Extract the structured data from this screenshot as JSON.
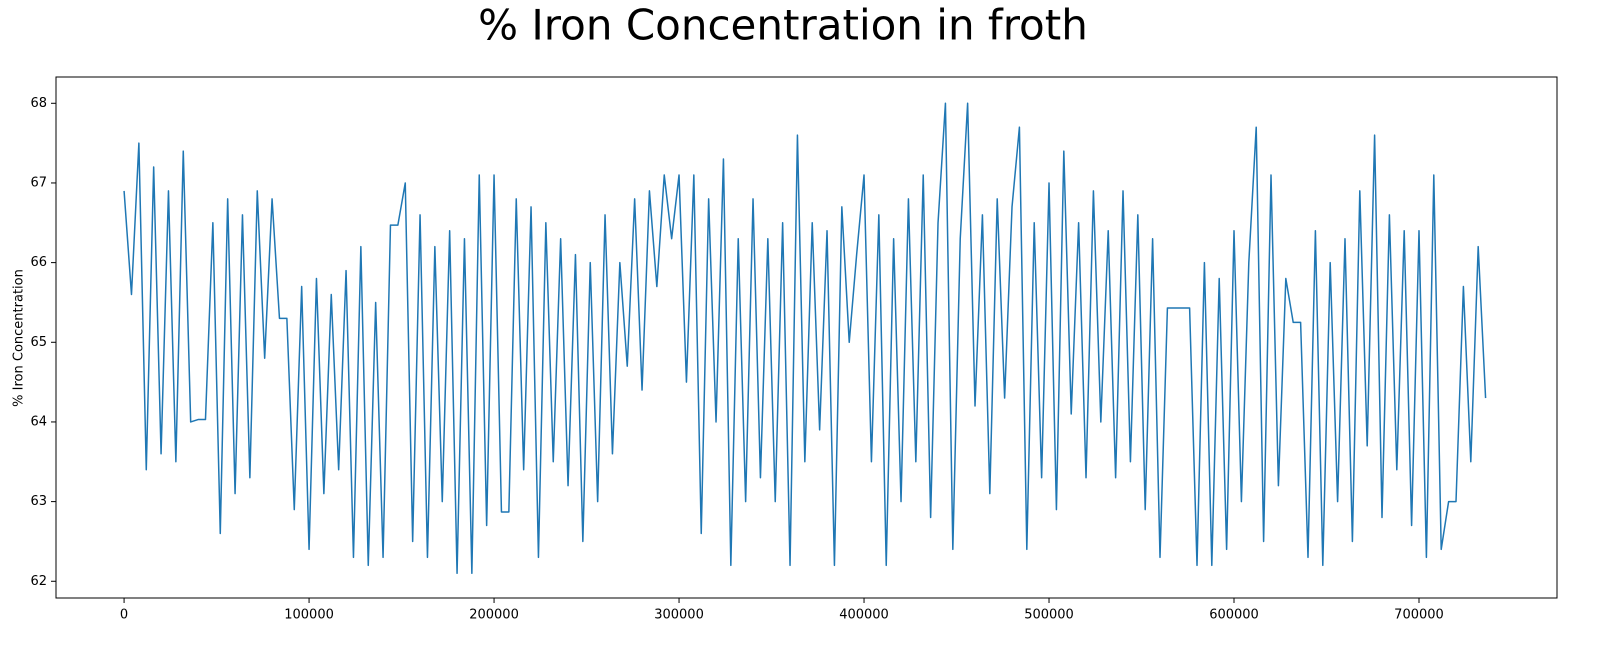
{
  "chart_data": {
    "type": "line",
    "title": "% Iron Concentration in froth",
    "y_label": "% Iron Concentration",
    "xlim": [
      -36800,
      774600
    ],
    "ylim": [
      61.79,
      68.33
    ],
    "xticks": [
      0,
      100000,
      200000,
      300000,
      400000,
      500000,
      600000,
      700000
    ],
    "yticks": [
      62,
      63,
      64,
      65,
      66,
      67,
      68
    ],
    "series": [
      {
        "name": "% Iron Concentration",
        "color": "#1f77b4",
        "x": [
          0,
          4000,
          8000,
          12000,
          16000,
          20000,
          24000,
          28000,
          32000,
          36000,
          40000,
          44000,
          48000,
          52000,
          56000,
          60000,
          64000,
          68000,
          72000,
          76000,
          80000,
          84000,
          88000,
          92000,
          96000,
          100000,
          104000,
          108000,
          112000,
          116000,
          120000,
          124000,
          128000,
          132000,
          136000,
          140000,
          144000,
          148000,
          152000,
          156000,
          160000,
          164000,
          168000,
          172000,
          176000,
          180000,
          184000,
          188000,
          192000,
          196000,
          200000,
          204000,
          208000,
          212000,
          216000,
          220000,
          224000,
          228000,
          232000,
          236000,
          240000,
          244000,
          248000,
          252000,
          256000,
          260000,
          264000,
          268000,
          272000,
          276000,
          280000,
          284000,
          288000,
          292000,
          296000,
          300000,
          304000,
          308000,
          312000,
          316000,
          320000,
          324000,
          328000,
          332000,
          336000,
          340000,
          344000,
          348000,
          352000,
          356000,
          360000,
          364000,
          368000,
          372000,
          376000,
          380000,
          384000,
          388000,
          392000,
          396000,
          400000,
          404000,
          408000,
          412000,
          416000,
          420000,
          424000,
          428000,
          432000,
          436000,
          440000,
          444000,
          448000,
          452000,
          456000,
          460000,
          464000,
          468000,
          472000,
          476000,
          480000,
          484000,
          488000,
          492000,
          496000,
          500000,
          504000,
          508000,
          512000,
          516000,
          520000,
          524000,
          528000,
          532000,
          536000,
          540000,
          544000,
          548000,
          552000,
          556000,
          560000,
          564000,
          568000,
          572000,
          576000,
          580000,
          584000,
          588000,
          592000,
          596000,
          600000,
          604000,
          608000,
          612000,
          616000,
          620000,
          624000,
          628000,
          632000,
          636000,
          640000,
          644000,
          648000,
          652000,
          656000,
          660000,
          664000,
          668000,
          672000,
          676000,
          680000,
          684000,
          688000,
          692000,
          696000,
          700000,
          704000,
          708000,
          712000,
          716000,
          720000,
          724000,
          728000,
          732000,
          736000
        ],
        "values": [
          66.9,
          65.6,
          67.5,
          63.4,
          67.2,
          63.6,
          66.9,
          63.5,
          67.4,
          64.0,
          64.03,
          64.03,
          66.5,
          62.6,
          66.8,
          63.1,
          66.6,
          63.3,
          66.9,
          64.8,
          66.8,
          65.3,
          65.3,
          62.9,
          65.7,
          62.4,
          65.8,
          63.1,
          65.6,
          63.4,
          65.9,
          62.3,
          66.2,
          62.2,
          65.5,
          62.3,
          66.47,
          66.47,
          67.0,
          62.5,
          66.6,
          62.3,
          66.2,
          63.0,
          66.4,
          62.1,
          66.3,
          62.1,
          67.1,
          62.7,
          67.1,
          62.87,
          62.87,
          66.8,
          63.4,
          66.7,
          62.3,
          66.5,
          63.5,
          66.3,
          63.2,
          66.1,
          62.5,
          66.0,
          63.0,
          66.6,
          63.6,
          66.0,
          64.7,
          66.8,
          64.4,
          66.9,
          65.7,
          67.1,
          66.3,
          67.1,
          64.5,
          67.1,
          62.6,
          66.8,
          64.0,
          67.3,
          62.2,
          66.3,
          63.0,
          66.8,
          63.3,
          66.3,
          63.0,
          66.5,
          62.2,
          67.6,
          63.5,
          66.5,
          63.9,
          66.4,
          62.2,
          66.7,
          65.0,
          66.1,
          67.1,
          63.5,
          66.6,
          62.2,
          66.3,
          63.0,
          66.8,
          63.5,
          67.1,
          62.8,
          66.5,
          68.0,
          62.4,
          66.3,
          68.0,
          64.2,
          66.6,
          63.1,
          66.8,
          64.3,
          66.7,
          67.7,
          62.4,
          66.5,
          63.3,
          67.0,
          62.9,
          67.4,
          64.1,
          66.5,
          63.3,
          66.9,
          64.0,
          66.4,
          63.3,
          66.9,
          63.5,
          66.6,
          62.9,
          66.3,
          62.3,
          65.43,
          65.43,
          65.43,
          65.43,
          62.2,
          66.0,
          62.2,
          65.8,
          62.4,
          66.4,
          63.0,
          66.0,
          67.7,
          62.5,
          67.1,
          63.2,
          65.8,
          65.25,
          65.25,
          62.3,
          66.4,
          62.2,
          66.0,
          63.0,
          66.3,
          62.5,
          66.9,
          63.7,
          67.6,
          62.8,
          66.6,
          63.4,
          66.4,
          62.7,
          66.4,
          62.3,
          67.1,
          62.4,
          63.0,
          63.0,
          65.7,
          63.5,
          66.2,
          64.3
        ]
      }
    ]
  }
}
